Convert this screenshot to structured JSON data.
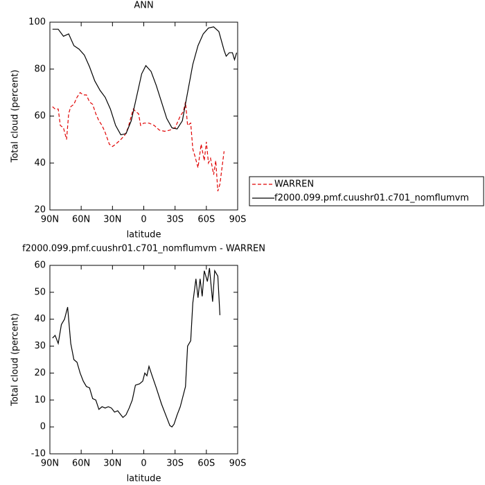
{
  "chart_data": [
    {
      "type": "line",
      "title": "ANN",
      "x_label": "latitude",
      "y_label": "Total cloud (percent)",
      "xlim": [
        90,
        -90
      ],
      "xticks": [
        {
          "value": 90,
          "label": "90N"
        },
        {
          "value": 60,
          "label": "60N"
        },
        {
          "value": 30,
          "label": "30N"
        },
        0,
        {
          "value": -30,
          "label": "30S"
        },
        {
          "value": -60,
          "label": "60S"
        },
        {
          "value": -90,
          "label": "90S"
        }
      ],
      "ylim": [
        20,
        100
      ],
      "yticks": [
        20,
        40,
        60,
        80,
        100
      ],
      "legend": "right",
      "series": [
        {
          "name": "WARREN",
          "color": "#e00000",
          "linestyle": "dashed",
          "x": [
            87.5,
            85,
            82,
            80,
            77,
            74,
            72,
            70,
            67,
            64,
            61,
            58,
            55,
            52,
            49,
            46,
            43,
            40,
            37,
            33,
            30,
            27,
            22,
            18,
            15,
            12,
            10,
            8,
            5,
            3,
            0,
            -5,
            -10,
            -15,
            -20,
            -25,
            -30,
            -35,
            -38,
            -40,
            -42,
            -45,
            -47,
            -49,
            -52,
            -55,
            -58,
            -60,
            -62,
            -64,
            -67,
            -69,
            -71,
            -73,
            -77
          ],
          "values": [
            64,
            63,
            63,
            56,
            55,
            50,
            61,
            64,
            65,
            68,
            70,
            69,
            69,
            66,
            65,
            61,
            58,
            56,
            53,
            48,
            47,
            48,
            50,
            52,
            55,
            60,
            63,
            62,
            61,
            56,
            57,
            57,
            56,
            54,
            53.5,
            54,
            55,
            60,
            62,
            66,
            56,
            57,
            46,
            43,
            38,
            48,
            41,
            49,
            40,
            42,
            35,
            41,
            28,
            31,
            45
          ]
        },
        {
          "name": "f2000.099.pmf.cuushr01.c701_nomflumvm",
          "color": "#000000",
          "linestyle": "solid",
          "x": [
            87.5,
            82,
            77,
            72,
            67,
            62,
            57,
            52,
            47,
            42,
            37,
            32,
            27,
            22,
            17,
            12,
            7,
            2,
            -2,
            -7,
            -12,
            -17,
            -22,
            -27,
            -32,
            -37,
            -42,
            -47,
            -52,
            -57,
            -62,
            -67,
            -72,
            -77,
            -79,
            -82,
            -85,
            -87,
            -89
          ],
          "values": [
            97,
            97,
            94,
            95,
            90,
            88.5,
            86,
            81,
            75,
            71,
            68,
            63,
            56,
            52,
            52.5,
            58,
            68,
            78,
            81.5,
            79,
            73,
            66,
            59,
            55,
            54.5,
            58,
            70,
            82,
            90,
            95,
            97.5,
            98,
            96,
            88,
            85.5,
            87,
            87,
            84,
            87
          ]
        }
      ]
    },
    {
      "type": "line",
      "title": "f2000.099.pmf.cuushr01.c701_nomflumvm - WARREN",
      "x_label": "latitude",
      "y_label": "Total cloud (percent)",
      "xlim": [
        90,
        -90
      ],
      "xticks": [
        {
          "value": 90,
          "label": "90N"
        },
        {
          "value": 60,
          "label": "60N"
        },
        {
          "value": 30,
          "label": "30N"
        },
        0,
        {
          "value": -30,
          "label": "30S"
        },
        {
          "value": -60,
          "label": "60S"
        },
        {
          "value": -90,
          "label": "90S"
        }
      ],
      "ylim": [
        -10,
        60
      ],
      "yticks": [
        -10,
        0,
        10,
        20,
        30,
        40,
        50,
        60
      ],
      "series": [
        {
          "color": "#000000",
          "linestyle": "solid",
          "x": [
            87.5,
            85,
            82,
            79,
            76,
            73,
            70,
            67,
            64,
            61,
            58,
            55,
            52,
            49,
            46,
            43,
            40,
            37,
            34,
            31,
            28,
            25,
            22,
            20,
            17,
            14,
            11,
            8,
            4,
            1,
            -1,
            -3,
            -5,
            -8,
            -12,
            -17,
            -22,
            -25,
            -27,
            -29,
            -32,
            -35,
            -38,
            -40,
            -42,
            -45,
            -47,
            -50,
            -52,
            -54,
            -56,
            -58,
            -61,
            -63,
            -66,
            -68,
            -71,
            -73
          ],
          "values": [
            33,
            34,
            31,
            38,
            40,
            44.5,
            31,
            25,
            24,
            20,
            17,
            15,
            14.5,
            10.5,
            10,
            6.5,
            7.5,
            7,
            7.5,
            7,
            5.5,
            6,
            4.5,
            3.5,
            4.5,
            7,
            10,
            15.5,
            16,
            17,
            20,
            19,
            22.5,
            19,
            14.5,
            8.5,
            3.5,
            0.5,
            0,
            1,
            4.5,
            7.5,
            12,
            15,
            30,
            32,
            46,
            55,
            48,
            55,
            48.5,
            58,
            54,
            59,
            46.5,
            58,
            56,
            41.5
          ]
        }
      ]
    }
  ]
}
